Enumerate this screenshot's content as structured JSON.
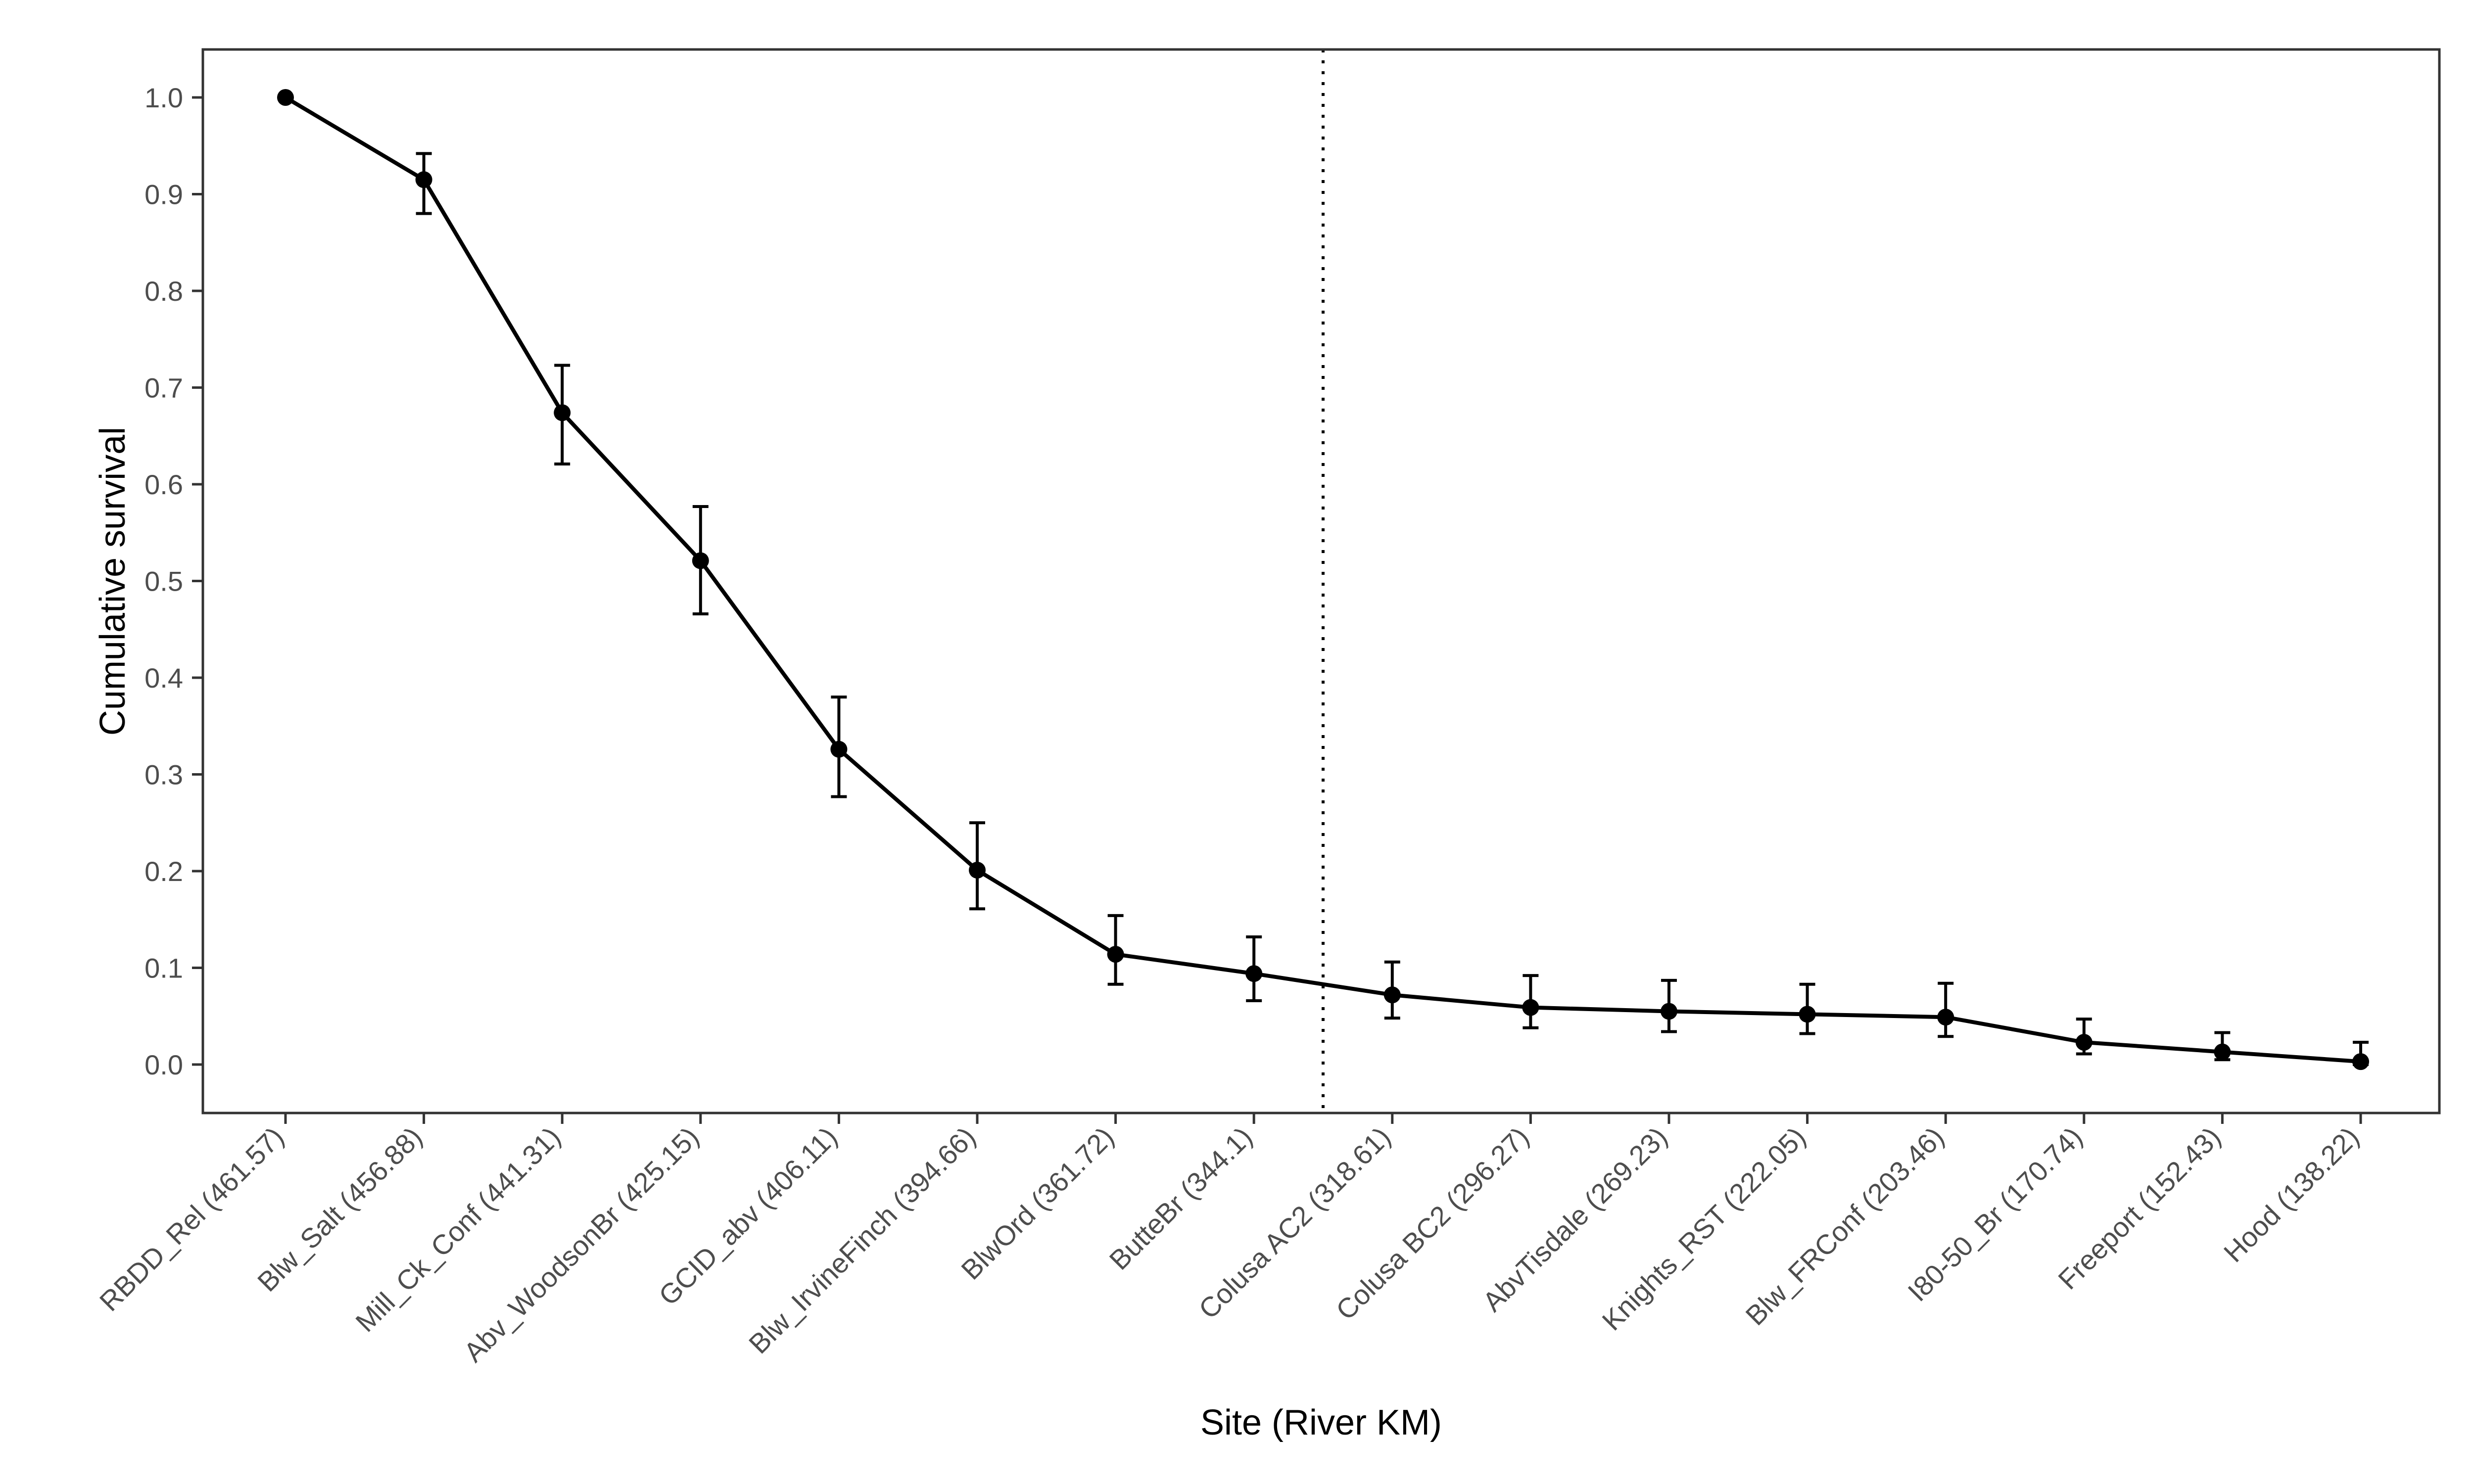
{
  "chart_data": {
    "type": "line",
    "xlabel": "Site (River KM)",
    "ylabel": "Cumulative survival",
    "ylim": [
      -0.05,
      1.05
    ],
    "yticks": [
      0.0,
      0.1,
      0.2,
      0.3,
      0.4,
      0.5,
      0.6,
      0.7,
      0.8,
      0.9,
      1.0
    ],
    "ytick_labels": [
      "0.0",
      "0.1",
      "0.2",
      "0.3",
      "0.4",
      "0.5",
      "0.6",
      "0.7",
      "0.8",
      "0.9",
      "1.0"
    ],
    "grid": false,
    "legend": "none",
    "line_color": "#000000",
    "categories": [
      "RBDD_Rel (461.57)",
      "Blw_Salt (456.88)",
      "Mill_Ck_Conf (441.31)",
      "Abv_WoodsonBr (425.15)",
      "GCID_abv (406.11)",
      "Blw_IrvineFinch (394.66)",
      "BlwOrd (361.72)",
      "ButteBr (344.1)",
      "Colusa AC2 (318.61)",
      "Colusa BC2 (296.27)",
      "AbvTisdale (269.23)",
      "Knights_RST (222.05)",
      "Blw_FRConf (203.46)",
      "I80-50_Br (170.74)",
      "Freeport (152.43)",
      "Hood (138.22)"
    ],
    "values": [
      1.0,
      0.915,
      0.674,
      0.521,
      0.326,
      0.201,
      0.114,
      0.094,
      0.072,
      0.059,
      0.055,
      0.052,
      0.049,
      0.023,
      0.013,
      0.003
    ],
    "error_low": [
      1.0,
      0.88,
      0.621,
      0.466,
      0.277,
      0.161,
      0.083,
      0.066,
      0.048,
      0.038,
      0.034,
      0.032,
      0.029,
      0.011,
      0.005,
      0.0
    ],
    "error_high": [
      1.0,
      0.942,
      0.723,
      0.577,
      0.38,
      0.25,
      0.154,
      0.132,
      0.106,
      0.092,
      0.087,
      0.083,
      0.084,
      0.047,
      0.033,
      0.023
    ],
    "vline_between": [
      "ButteBr (344.1)",
      "Colusa AC2 (318.61)"
    ],
    "vline_style": "dotted"
  }
}
